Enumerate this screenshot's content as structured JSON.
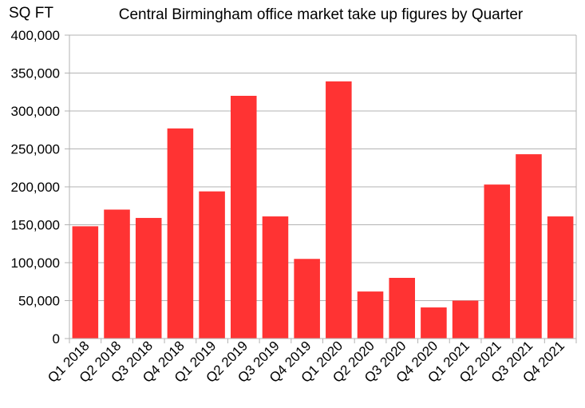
{
  "chart_data": {
    "type": "bar",
    "title": "Central Birmingham office market take up figures by Quarter",
    "ylabel": "SQ FT",
    "xlabel": "",
    "categories": [
      "Q1 2018",
      "Q2 2018",
      "Q3 2018",
      "Q4 2018",
      "Q1 2019",
      "Q2 2019",
      "Q3 2019",
      "Q4 2019",
      "Q1 2020",
      "Q2 2020",
      "Q3 2020",
      "Q4 2020",
      "Q1 2021",
      "Q2 2021",
      "Q3 2021",
      "Q4 2021"
    ],
    "values": [
      148000,
      170000,
      159000,
      277000,
      194000,
      320000,
      161000,
      105000,
      339000,
      62000,
      80000,
      41000,
      50000,
      203000,
      243000,
      161000
    ],
    "ylim": [
      0,
      400000
    ],
    "yticks": [
      0,
      50000,
      100000,
      150000,
      200000,
      250000,
      300000,
      350000,
      400000
    ],
    "ytick_labels": [
      "0",
      "50,000",
      "100,000",
      "150,000",
      "200,000",
      "250,000",
      "300,000",
      "350,000",
      "400,000"
    ],
    "grid": true,
    "legend": "none",
    "colors": {
      "bar": "#ff3333",
      "grid": "#b3b3b3",
      "axis": "#b3b3b3"
    }
  }
}
